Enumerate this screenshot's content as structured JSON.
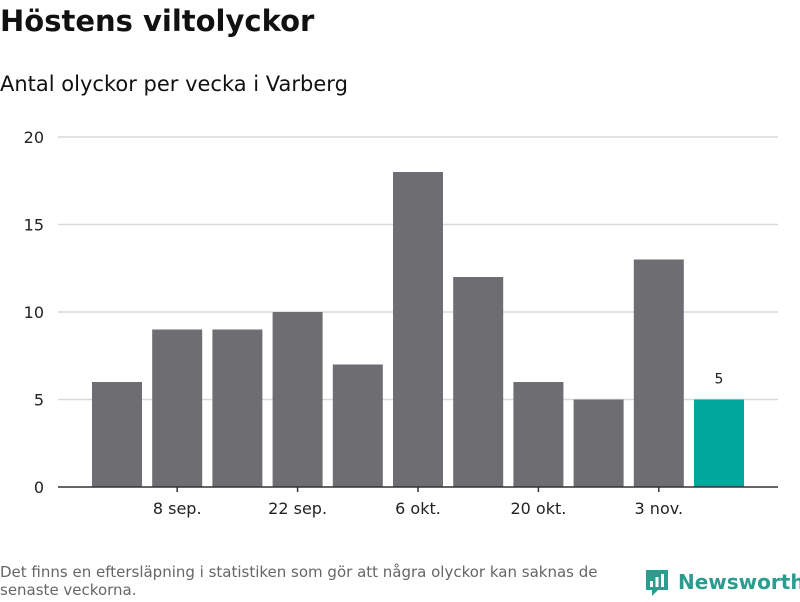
{
  "title": "Höstens viltolyckor",
  "subtitle": "Antal olyckor per vecka i Varberg",
  "footnote": "Det finns en eftersläpning i statistiken som gör att några olyckor kan saknas de senaste veckorna.",
  "brand": {
    "name": "Newsworthy",
    "icon": "newsworthy-logo-icon"
  },
  "colors": {
    "bar": "#6e6d72",
    "highlight": "#00a79d",
    "grid": "#d9d9d9",
    "axis": "#333333",
    "brand": "#2a9d8f"
  },
  "chart_data": {
    "type": "bar",
    "title": "Höstens viltolyckor",
    "subtitle": "Antal olyckor per vecka i Varberg",
    "xlabel": "",
    "ylabel": "",
    "ylim": [
      0,
      20
    ],
    "yticks": [
      0,
      5,
      10,
      15,
      20
    ],
    "grid": true,
    "values": [
      6,
      9,
      9,
      10,
      7,
      18,
      12,
      6,
      5,
      13,
      5
    ],
    "x_tick_labels": [
      "",
      "8 sep.",
      "",
      "22 sep.",
      "",
      "6 okt.",
      "",
      "20 okt.",
      "",
      "3 nov.",
      ""
    ],
    "highlight_index": 10,
    "data_labels": [
      {
        "index": 10,
        "text": "5"
      }
    ]
  }
}
